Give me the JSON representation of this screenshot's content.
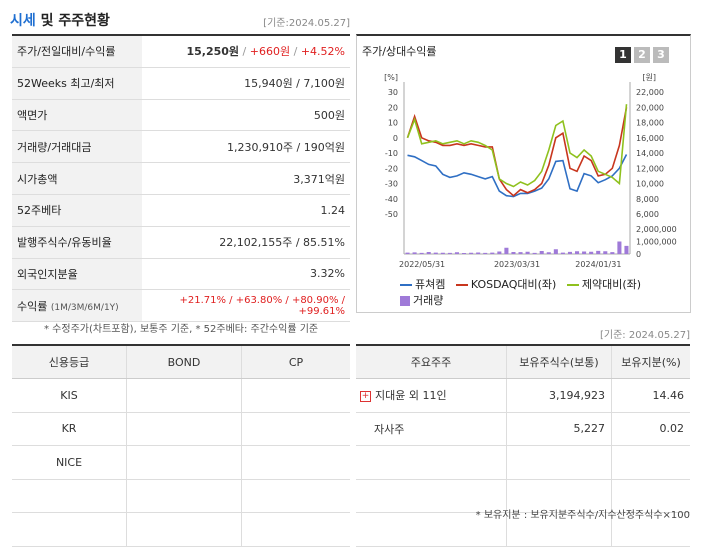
{
  "header": {
    "title_accent": "시세",
    "title_rest": " 및 주주현황",
    "date": "[기준:2024.05.27]"
  },
  "summary": {
    "rows": [
      {
        "label": "주가/전일대비/수익률",
        "price": "15,250원",
        "change": "+660원",
        "rate": "+4.52%"
      },
      {
        "label": "52Weeks 최고/최저",
        "value": "15,940원 / 7,100원"
      },
      {
        "label": "액면가",
        "value": "500원"
      },
      {
        "label": "거래량/거래대금",
        "value": "1,230,910주 / 190억원"
      },
      {
        "label": "시가총액",
        "value": "3,371억원"
      },
      {
        "label": "52주베타",
        "value": "1.24"
      },
      {
        "label": "발행주식수/유동비율",
        "value": "22,102,155주 / 85.51%"
      },
      {
        "label": "외국인지분율",
        "value": "3.32%"
      },
      {
        "label": "수익률",
        "label_sub": "(1M/3M/6M/1Y)",
        "value": "+21.71% / +63.80% / +80.90% / +99.61%"
      }
    ],
    "note": "* 수정주가(차트포함), 보통주 기준, * 52주베타: 주간수익률 기준"
  },
  "chart_panel": {
    "title": "주가/상대수익률",
    "tabs": [
      "1",
      "2",
      "3"
    ],
    "active_tab": "1",
    "legend": [
      {
        "label": "퓨쳐켐",
        "color": "#2f6fc4"
      },
      {
        "label": "KOSDAQ대비(좌)",
        "color": "#c8361e"
      },
      {
        "label": "제약대비(좌)",
        "color": "#8fc11e"
      },
      {
        "label": "거래량",
        "color": "#9f7ad8"
      }
    ]
  },
  "chart_data": {
    "type": "line",
    "left_unit": "[%]",
    "right_unit": "[원]",
    "left_ticks": [
      "30",
      "20",
      "10",
      "0",
      "-10",
      "-20",
      "-30",
      "-40",
      "-50"
    ],
    "right_ticks": [
      "22,000",
      "20,000",
      "18,000",
      "16,000",
      "14,000",
      "12,000",
      "10,000",
      "8,000",
      "6,000"
    ],
    "volume_ticks": [
      "2,000,000",
      "1,000,000",
      "0"
    ],
    "x_ticks": [
      "2022/05/31",
      "2023/03/31",
      "2024/01/31"
    ],
    "ylim_left": [
      -50,
      30
    ],
    "ylim_right": [
      6000,
      22000
    ],
    "ylim_volume": [
      0,
      2000000
    ],
    "series": [
      {
        "name": "퓨쳐켐",
        "axis": "right",
        "color": "#2f6fc4",
        "values": [
          13700,
          13500,
          13000,
          12500,
          12300,
          11200,
          10800,
          11000,
          11400,
          11200,
          10900,
          10600,
          10900,
          9000,
          8400,
          8300,
          8700,
          8700,
          9000,
          9400,
          10600,
          12900,
          13000,
          9300,
          9000,
          11300,
          11000,
          10100,
          10500,
          11000,
          12000,
          13800
        ]
      },
      {
        "name": "KOSDAQ대비(좌)",
        "axis": "left",
        "color": "#c8361e",
        "values": [
          0,
          14,
          0,
          -2,
          -3,
          -5,
          -5,
          -4,
          -5,
          -4,
          -5,
          -6,
          -6,
          -27,
          -34,
          -38,
          -34,
          -36,
          -34,
          -30,
          -18,
          0,
          3,
          -20,
          -22,
          -12,
          -15,
          -25,
          -24,
          -20,
          -5,
          20
        ]
      },
      {
        "name": "제약대비(좌)",
        "axis": "left",
        "color": "#8fc11e",
        "values": [
          0,
          12,
          -4,
          -3,
          -2,
          -4,
          -3,
          -2,
          -4,
          -2,
          -3,
          -5,
          -8,
          -27,
          -30,
          -32,
          -29,
          -31,
          -28,
          -22,
          -8,
          8,
          11,
          -10,
          -13,
          -8,
          -12,
          -22,
          -24,
          -26,
          -30,
          22
        ]
      }
    ],
    "volume": [
      110000,
      130000,
      90000,
      160000,
      110000,
      100000,
      90000,
      140000,
      80000,
      100000,
      120000,
      90000,
      110000,
      200000,
      500000,
      160000,
      150000,
      180000,
      90000,
      240000,
      140000,
      380000,
      110000,
      170000,
      220000,
      200000,
      180000,
      250000,
      220000,
      150000,
      1000000,
      650000
    ]
  },
  "chart_date": "[기준: 2024.05.27]",
  "credit": {
    "headers": [
      "신용등급",
      "BOND",
      "CP"
    ],
    "rows": [
      [
        "KIS",
        "",
        ""
      ],
      [
        "KR",
        "",
        ""
      ],
      [
        "NICE",
        "",
        ""
      ],
      [
        "",
        "",
        ""
      ],
      [
        "",
        "",
        ""
      ]
    ]
  },
  "holders": {
    "headers": [
      "주요주주",
      "보유주식수(보통)",
      "보유지분(%)"
    ],
    "rows": [
      {
        "name": "지대윤 외 11인",
        "shares": "3,194,923",
        "pct": "14.46",
        "expand": "+"
      },
      {
        "name": "자사주",
        "shares": "5,227",
        "pct": "0.02"
      },
      {
        "name": "",
        "shares": "",
        "pct": ""
      },
      {
        "name": "",
        "shares": "",
        "pct": ""
      },
      {
        "name": "",
        "shares": "",
        "pct": ""
      }
    ],
    "note": "* 보유지분 : 보유지분주식수/지수산정주식수×100"
  }
}
